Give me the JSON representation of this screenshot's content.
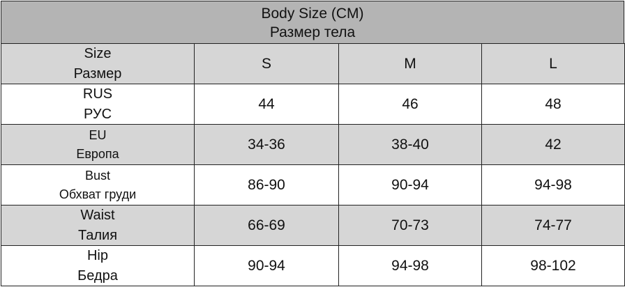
{
  "header": {
    "title": [
      "Body Size (CM)",
      "Размер тела"
    ]
  },
  "table": {
    "columns": [
      [
        "Size",
        "Размер"
      ],
      "S",
      "M",
      "L"
    ],
    "rows": [
      [
        [
          "RUS",
          "РУС"
        ],
        "44",
        "46",
        "48"
      ],
      [
        [
          "EU",
          "Европа"
        ],
        "34-36",
        "38-40",
        "42"
      ],
      [
        [
          "Bust",
          "Обхват груди"
        ],
        "86-90",
        "90-94",
        "94-98"
      ],
      [
        [
          "Waist",
          "Талия"
        ],
        "66-69",
        "70-73",
        "74-77"
      ],
      [
        [
          "Hip",
          "Бедра"
        ],
        "90-94",
        "94-98",
        "98-102"
      ]
    ]
  }
}
